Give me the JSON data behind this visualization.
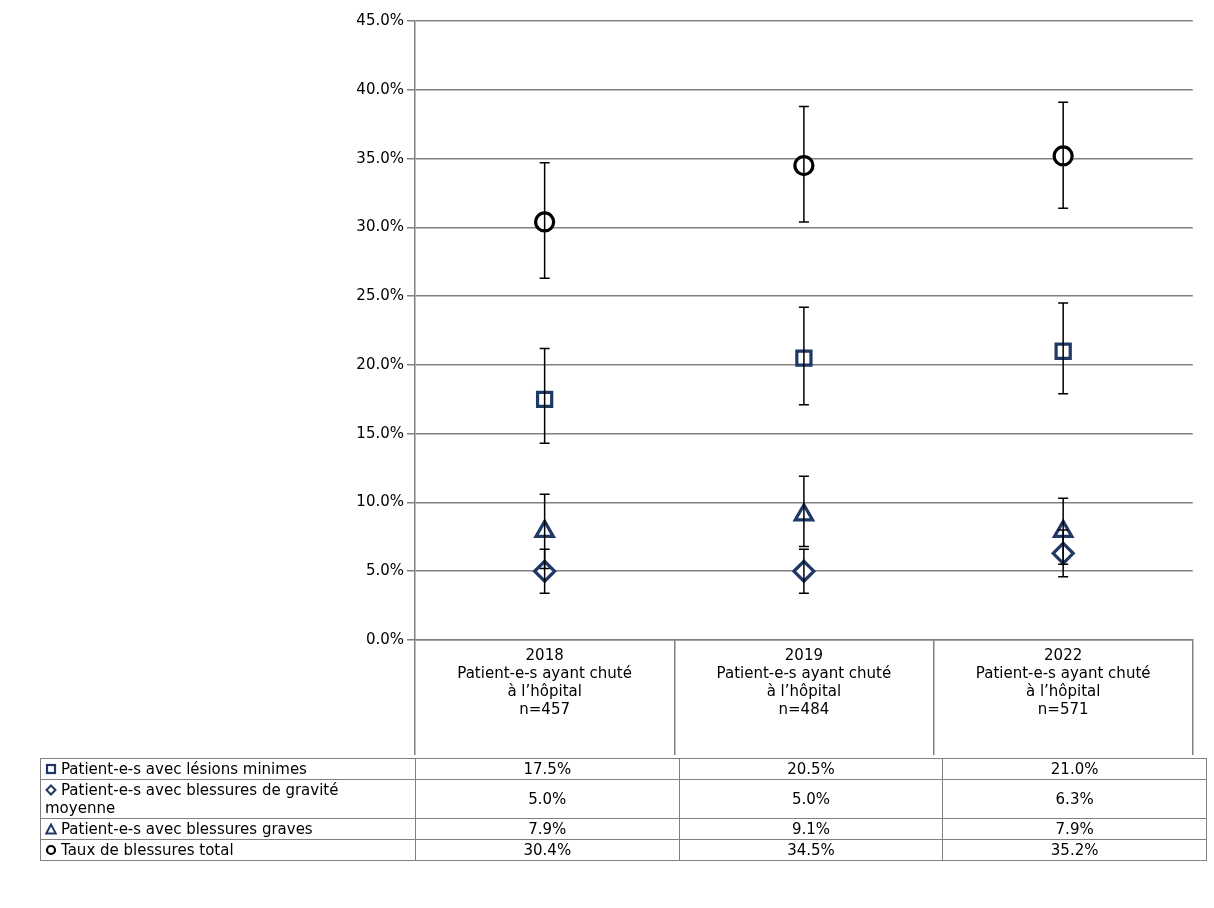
{
  "chart_data": {
    "type": "scatter",
    "categories": [
      "2018\nPatient-e-s ayant chuté\nà l’hôpital\nn=457",
      "2019\nPatient-e-s ayant chuté\nà l’hôpital\nn=484",
      "2022\nPatient-e-s ayant chuté\nà l’hôpital\nn=571"
    ],
    "series": [
      {
        "name": "Patient-e-s avec lésions minimes",
        "color": "#1f3864",
        "marker": "square",
        "values": [
          17.5,
          20.5,
          21.0
        ],
        "errors": [
          [
            14.3,
            21.2
          ],
          [
            17.1,
            24.2
          ],
          [
            17.9,
            24.5
          ]
        ],
        "value_labels": [
          "17.5%",
          "20.5%",
          "21.0%"
        ]
      },
      {
        "name": "Patient-e-s avec blessures de gravité moyenne",
        "color": "#1f3864",
        "marker": "diamond",
        "values": [
          5.0,
          5.0,
          6.3
        ],
        "errors": [
          [
            3.4,
            6.6
          ],
          [
            3.4,
            6.6
          ],
          [
            4.6,
            8.0
          ]
        ],
        "value_labels": [
          "5.0%",
          "5.0%",
          "6.3%"
        ]
      },
      {
        "name": "Patient-e-s avec blessures graves",
        "color": "#1f3864",
        "marker": "triangle",
        "values": [
          7.9,
          9.1,
          7.9
        ],
        "errors": [
          [
            5.2,
            10.6
          ],
          [
            6.8,
            11.9
          ],
          [
            5.5,
            10.3
          ]
        ],
        "value_labels": [
          "7.9%",
          "9.1%",
          "7.9%"
        ]
      },
      {
        "name": "Taux de blessures total",
        "color": "#000000",
        "marker": "circle",
        "values": [
          30.4,
          34.5,
          35.2
        ],
        "errors": [
          [
            26.3,
            34.7
          ],
          [
            30.4,
            38.8
          ],
          [
            31.4,
            39.1
          ]
        ],
        "value_labels": [
          "30.4%",
          "34.5%",
          "35.2%"
        ]
      }
    ],
    "ylim": [
      0,
      45
    ],
    "yticks": [
      {
        "value": 0,
        "label": "0.0%"
      },
      {
        "value": 5,
        "label": "5.0%"
      },
      {
        "value": 10,
        "label": "10.0%"
      },
      {
        "value": 15,
        "label": "15.0%"
      },
      {
        "value": 20,
        "label": "20.0%"
      },
      {
        "value": 25,
        "label": "25.0%"
      },
      {
        "value": 30,
        "label": "30.0%"
      },
      {
        "value": 35,
        "label": "35.0%"
      },
      {
        "value": 40,
        "label": "40.0%"
      },
      {
        "value": 45,
        "label": "45.0%"
      }
    ],
    "grid": "y",
    "legend": "bottom"
  }
}
